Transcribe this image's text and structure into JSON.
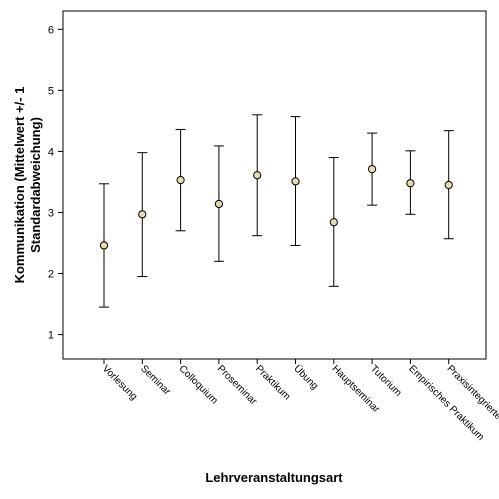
{
  "chart_data": {
    "type": "errorbar",
    "xlabel": "Lehrveranstaltungsart",
    "ylabel_lines": [
      "Kommunikation (Mittelwert +/- 1",
      "Standardabweichung)"
    ],
    "ylim": [
      0.6,
      6.3
    ],
    "yticks": [
      1,
      2,
      3,
      4,
      5,
      6
    ],
    "categories": [
      "Vorlesung",
      "Seminar",
      "Colloquium",
      "Proseminar",
      "Praktikum",
      "Übung",
      "Hauptseminar",
      "Tutorium",
      "Empirisches Praktikum",
      "Praxisintegrierte"
    ],
    "means": [
      2.46,
      2.97,
      3.53,
      3.14,
      3.61,
      3.51,
      2.84,
      3.71,
      3.48,
      3.45
    ],
    "lower": [
      1.45,
      1.95,
      2.7,
      2.2,
      2.62,
      2.46,
      1.79,
      3.12,
      2.97,
      2.57
    ],
    "upper": [
      3.47,
      3.98,
      4.36,
      4.09,
      4.6,
      4.57,
      3.9,
      4.3,
      4.01,
      4.34
    ],
    "marker_color": "#e6dcb4",
    "grid": false
  }
}
